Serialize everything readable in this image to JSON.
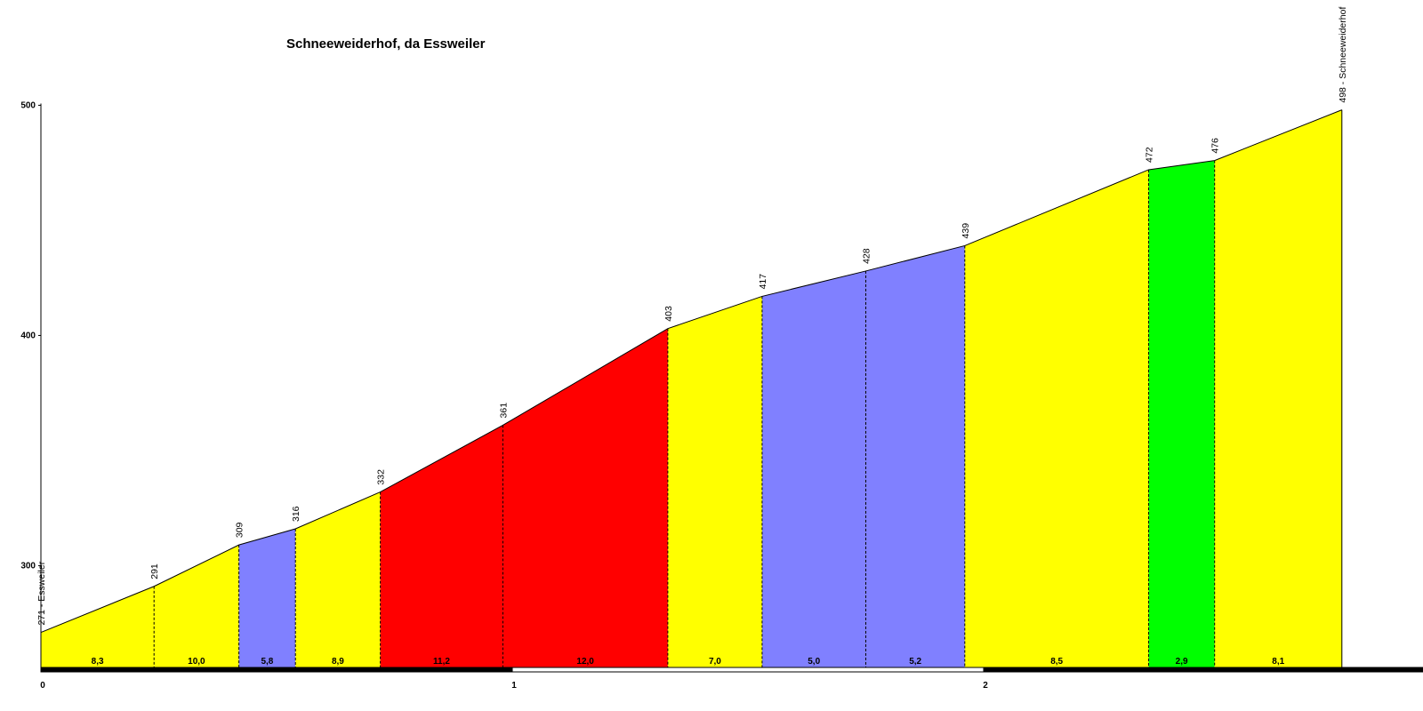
{
  "chart_data": {
    "type": "area",
    "title": "Schneeweiderhof, da Essweiler",
    "xlabel": "",
    "ylabel": "",
    "x_ticks": [
      "0",
      "1",
      "2"
    ],
    "y_ticks": [
      "300",
      "400",
      "500"
    ],
    "xlim": [
      0,
      2.88
    ],
    "ylim": [
      255,
      500
    ],
    "points": [
      {
        "km": 0.0,
        "elev": 271,
        "label": "271 - Essweiler"
      },
      {
        "km": 0.24,
        "elev": 291,
        "label": "291"
      },
      {
        "km": 0.42,
        "elev": 309,
        "label": "309"
      },
      {
        "km": 0.54,
        "elev": 316,
        "label": "316"
      },
      {
        "km": 0.72,
        "elev": 332,
        "label": "332"
      },
      {
        "km": 0.98,
        "elev": 361,
        "label": "361"
      },
      {
        "km": 1.33,
        "elev": 403,
        "label": "403"
      },
      {
        "km": 1.53,
        "elev": 417,
        "label": "417"
      },
      {
        "km": 1.75,
        "elev": 428,
        "label": "428"
      },
      {
        "km": 1.96,
        "elev": 439,
        "label": "439"
      },
      {
        "km": 2.35,
        "elev": 472,
        "label": "472"
      },
      {
        "km": 2.49,
        "elev": 476,
        "label": "476"
      },
      {
        "km": 2.76,
        "elev": 498,
        "label": "498 - Schneeweiderhof"
      }
    ],
    "segments": [
      {
        "gradient": "8,3",
        "color": "#ffff00"
      },
      {
        "gradient": "10,0",
        "color": "#ffff00"
      },
      {
        "gradient": "5,8",
        "color": "#8080ff"
      },
      {
        "gradient": "8,9",
        "color": "#ffff00"
      },
      {
        "gradient": "11,2",
        "color": "#ff0000"
      },
      {
        "gradient": "12,0",
        "color": "#ff0000"
      },
      {
        "gradient": "7,0",
        "color": "#ffff00"
      },
      {
        "gradient": "5,0",
        "color": "#8080ff"
      },
      {
        "gradient": "5,2",
        "color": "#8080ff"
      },
      {
        "gradient": "8,5",
        "color": "#ffff00"
      },
      {
        "gradient": "2,9",
        "color": "#00ff00"
      },
      {
        "gradient": "8,1",
        "color": "#ffff00"
      }
    ],
    "grid": false,
    "legend": "none"
  }
}
